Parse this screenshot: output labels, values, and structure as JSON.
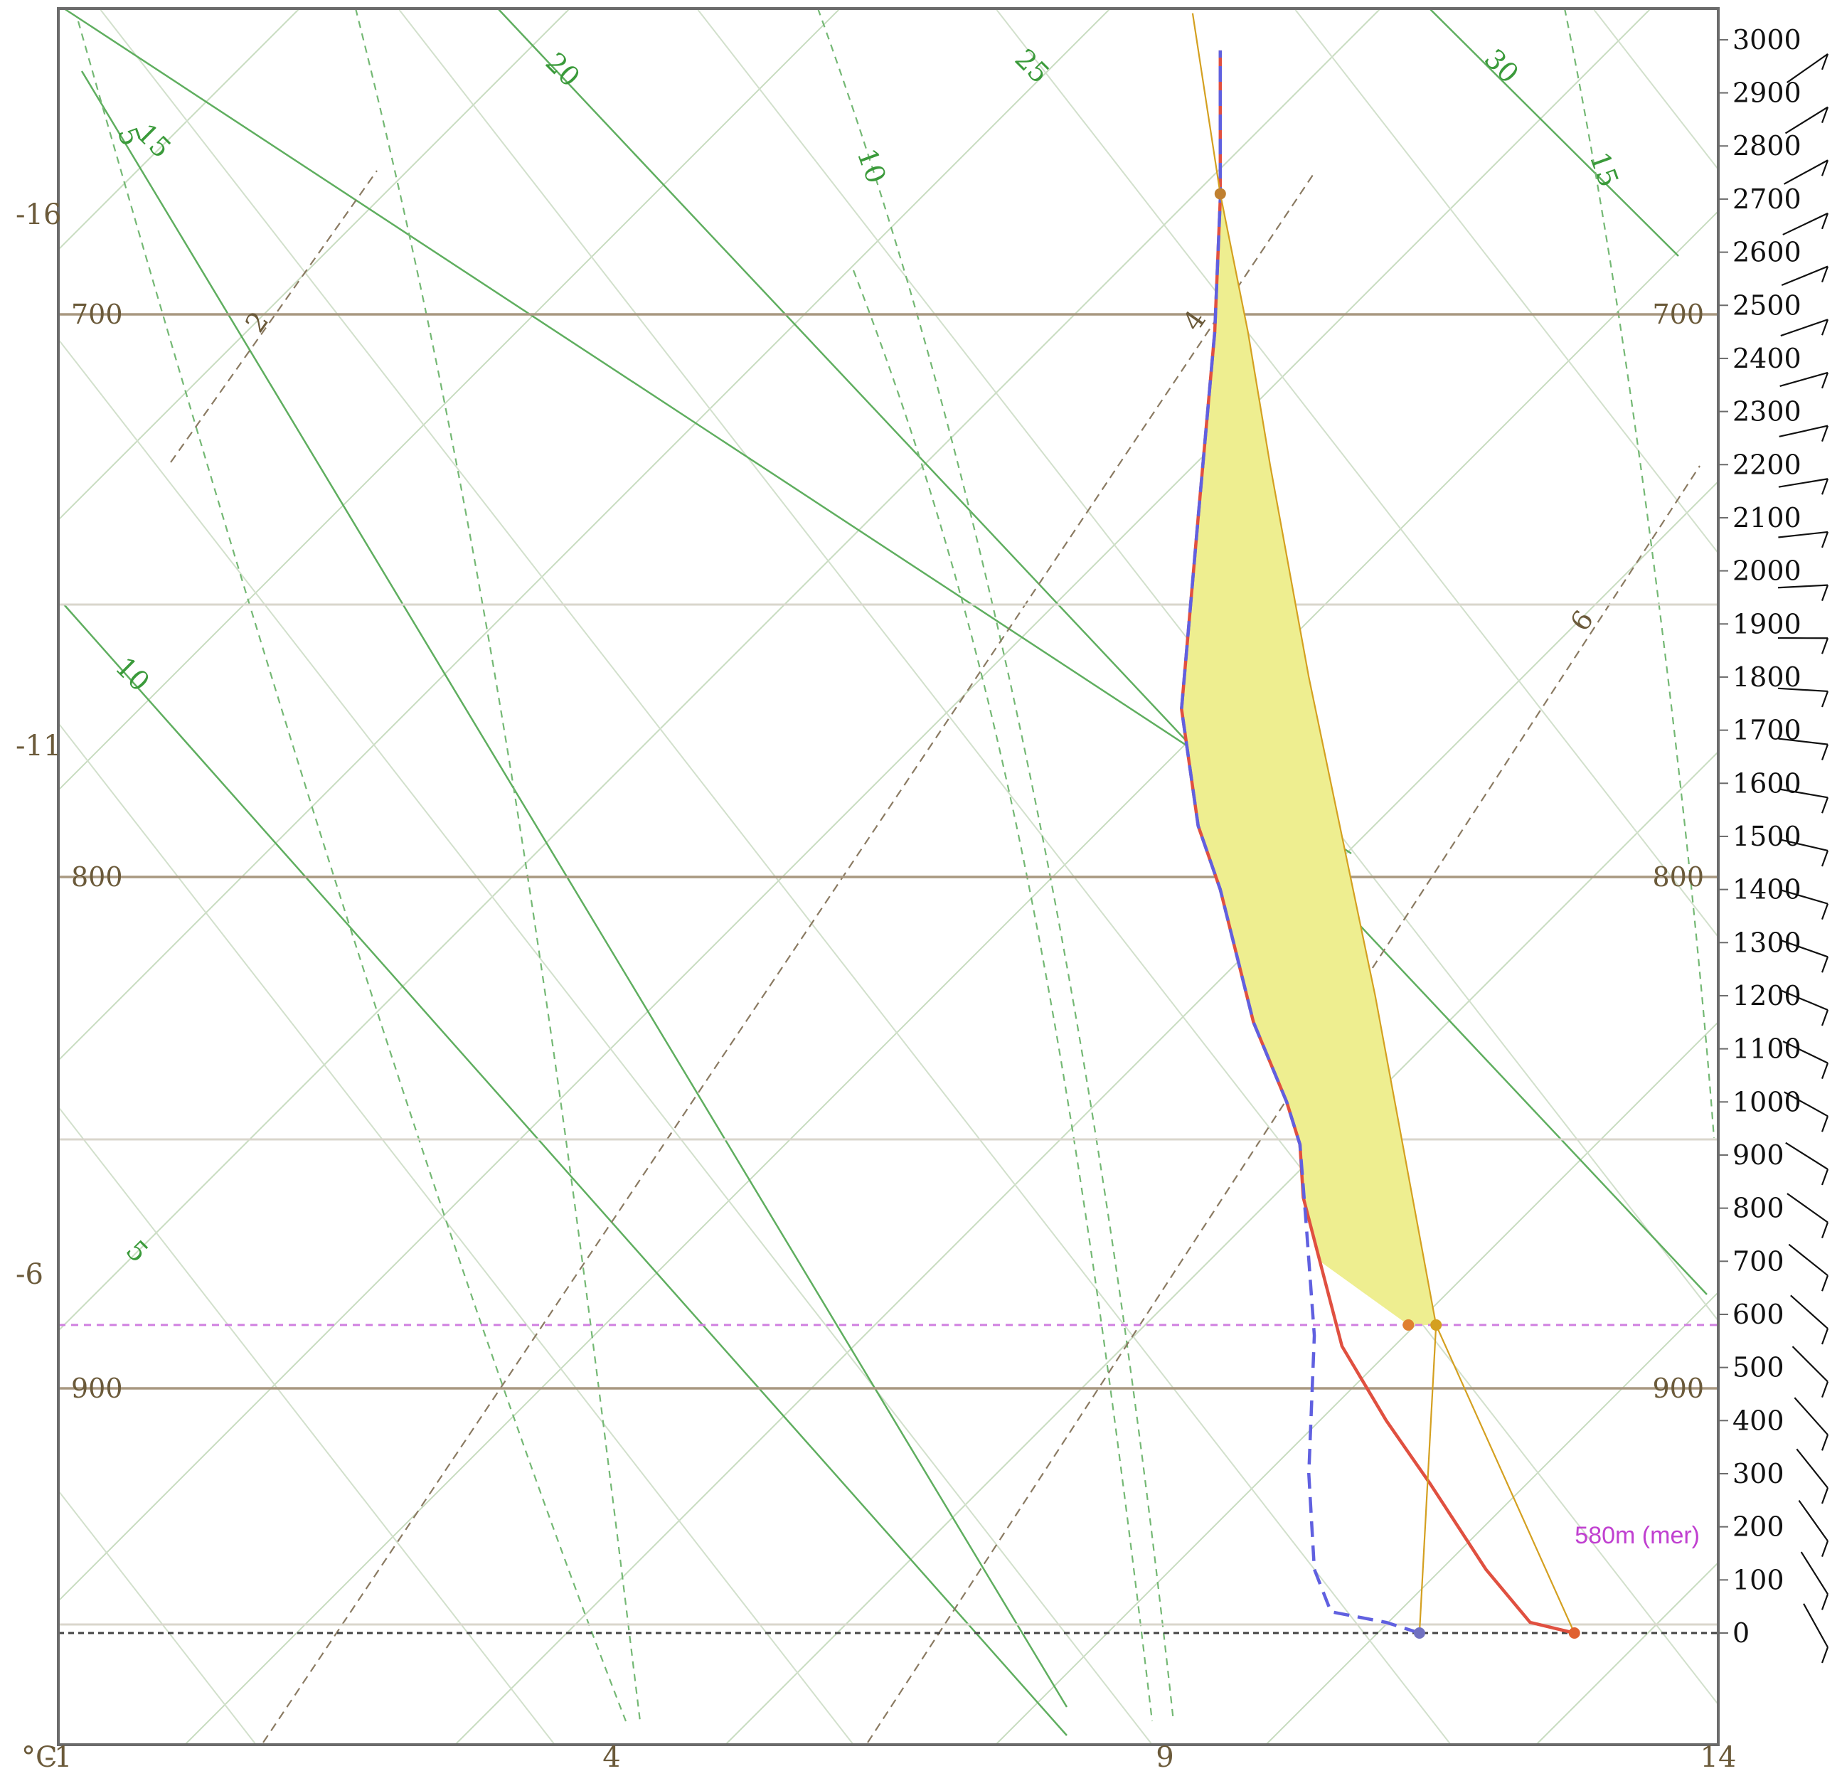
{
  "chart_data": {
    "type": "line",
    "title": "",
    "xlabel": "°C",
    "ylabel": "",
    "xlim": [
      -1,
      14
    ],
    "height_axis_range_m": [
      0,
      3000
    ],
    "x_ticks": [
      "-1",
      "4",
      "9",
      "14"
    ],
    "left_temperature_labels": [
      "-16",
      "-11",
      "-6"
    ],
    "pressure_levels_hPa": [
      "700",
      "800",
      "900"
    ],
    "height_ticks_m": [
      "3000",
      "2900",
      "2800",
      "2700",
      "2600",
      "2500",
      "2400",
      "2300",
      "2200",
      "2100",
      "2000",
      "1900",
      "1800",
      "1700",
      "1600",
      "1500",
      "1400",
      "1300",
      "1200",
      "1100",
      "1000",
      "900",
      "800",
      "700",
      "600",
      "500",
      "400",
      "300",
      "200",
      "100",
      "0"
    ],
    "dry_adiabat_labels": [
      "5",
      "10",
      "15",
      "20",
      "25",
      "30"
    ],
    "moist_adiabat_labels": [
      "5",
      "10",
      "15"
    ],
    "mixing_ratio_labels": [
      "2",
      "4",
      "6"
    ],
    "annotations": [
      {
        "text": "580m (mer)",
        "height_m": 580,
        "color": "#c040d0"
      }
    ],
    "series": [
      {
        "key": "temperature",
        "color": "#e05040",
        "style": "solid",
        "points": [
          [
            12.7,
            0
          ],
          [
            12.3,
            20
          ],
          [
            11.9,
            120
          ],
          [
            11.4,
            280
          ],
          [
            11.0,
            400
          ],
          [
            10.6,
            540
          ],
          [
            10.4,
            700
          ],
          [
            10.25,
            820
          ],
          [
            10.22,
            920
          ],
          [
            10.1,
            1000
          ],
          [
            9.8,
            1150
          ],
          [
            9.5,
            1400
          ],
          [
            9.3,
            1520
          ],
          [
            9.15,
            1740
          ],
          [
            9.3,
            2100
          ],
          [
            9.45,
            2450
          ],
          [
            9.5,
            2700
          ],
          [
            9.5,
            2980
          ]
        ]
      },
      {
        "key": "dewpoint",
        "color": "#6060e0",
        "style": "dashed",
        "points": [
          [
            11.3,
            0
          ],
          [
            11.0,
            20
          ],
          [
            10.5,
            40
          ],
          [
            10.35,
            120
          ],
          [
            10.3,
            300
          ],
          [
            10.35,
            560
          ],
          [
            10.28,
            760
          ],
          [
            10.22,
            920
          ],
          [
            10.1,
            1000
          ],
          [
            9.8,
            1150
          ],
          [
            9.5,
            1400
          ],
          [
            9.3,
            1520
          ],
          [
            9.15,
            1740
          ],
          [
            9.3,
            2100
          ],
          [
            9.45,
            2450
          ],
          [
            9.5,
            2700
          ],
          [
            9.5,
            2980
          ]
        ]
      },
      {
        "key": "parcel_ascent",
        "color": "#d4a020",
        "style": "solid",
        "points": [
          [
            12.7,
            0
          ],
          [
            11.45,
            580
          ],
          [
            10.9,
            1200
          ],
          [
            10.3,
            1800
          ],
          [
            9.95,
            2200
          ],
          [
            9.75,
            2450
          ],
          [
            9.5,
            2710
          ],
          [
            9.25,
            3050
          ]
        ]
      }
    ],
    "cape_fill_color": "#eeee90",
    "marked_points": [
      {
        "x": 12.7,
        "height_m": 0,
        "color": "#e06030"
      },
      {
        "x": 11.3,
        "height_m": 0,
        "color": "#7070c0"
      },
      {
        "x": 11.2,
        "height_m": 580,
        "color": "#e08030"
      },
      {
        "x": 11.45,
        "height_m": 580,
        "color": "#d4a020"
      },
      {
        "x": 9.5,
        "height_m": 2710,
        "color": "#c08030"
      }
    ],
    "wind_barbs": "right margin, one per height level",
    "grid": true
  }
}
